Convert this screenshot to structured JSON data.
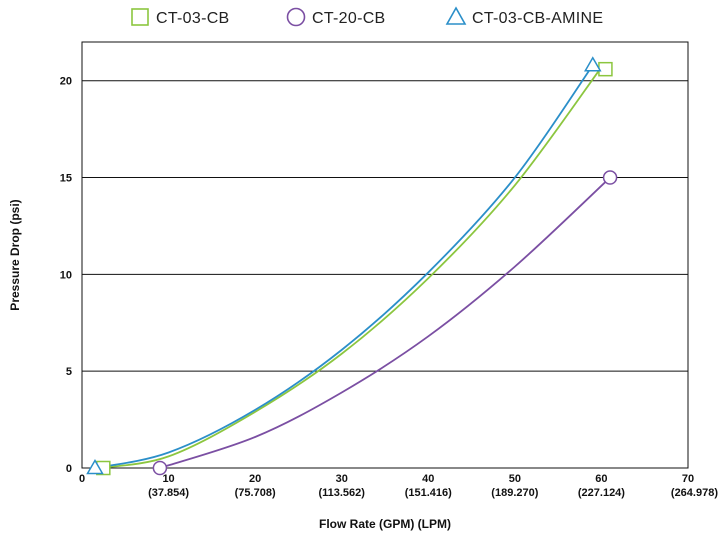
{
  "chart_data": {
    "type": "line",
    "xlabel": "Flow Rate (GPM) (LPM)",
    "ylabel": "Pressure Drop (psi)",
    "xlim": [
      0,
      70
    ],
    "ylim": [
      0,
      22
    ],
    "x_ticks": [
      {
        "value": 0,
        "label": "0",
        "sub": ""
      },
      {
        "value": 10,
        "label": "10",
        "sub": "(37.854)"
      },
      {
        "value": 20,
        "label": "20",
        "sub": "(75.708)"
      },
      {
        "value": 30,
        "label": "30",
        "sub": "(113.562)"
      },
      {
        "value": 40,
        "label": "40",
        "sub": "(151.416)"
      },
      {
        "value": 50,
        "label": "50",
        "sub": "(189.270)"
      },
      {
        "value": 60,
        "label": "60",
        "sub": "(227.124)"
      },
      {
        "value": 70,
        "label": "70",
        "sub": "(264.978)"
      }
    ],
    "y_ticks": [
      {
        "value": 0,
        "label": "0"
      },
      {
        "value": 5,
        "label": "5"
      },
      {
        "value": 10,
        "label": "10"
      },
      {
        "value": 15,
        "label": "15"
      },
      {
        "value": 20,
        "label": "20"
      }
    ],
    "grid": "horizontal",
    "legend_position": "top",
    "series": [
      {
        "name": "CT-03-CB",
        "color": "#8cc63f",
        "marker": "square",
        "x": [
          2,
          10,
          20,
          30,
          40,
          50,
          60
        ],
        "y": [
          0,
          0.6,
          2.9,
          5.9,
          9.8,
          14.6,
          20.7
        ]
      },
      {
        "name": "CT-20-CB",
        "color": "#7b4fa3",
        "marker": "circle",
        "x": [
          9,
          20,
          30,
          40,
          50,
          61
        ],
        "y": [
          0,
          1.6,
          3.9,
          6.8,
          10.4,
          15.0
        ]
      },
      {
        "name": "CT-03-CB-AMINE",
        "color": "#2b8fc9",
        "marker": "triangle",
        "x": [
          1.5,
          10,
          20,
          30,
          40,
          50,
          59
        ],
        "y": [
          0,
          0.8,
          3.0,
          6.1,
          10.1,
          15.0,
          20.8
        ]
      }
    ]
  }
}
